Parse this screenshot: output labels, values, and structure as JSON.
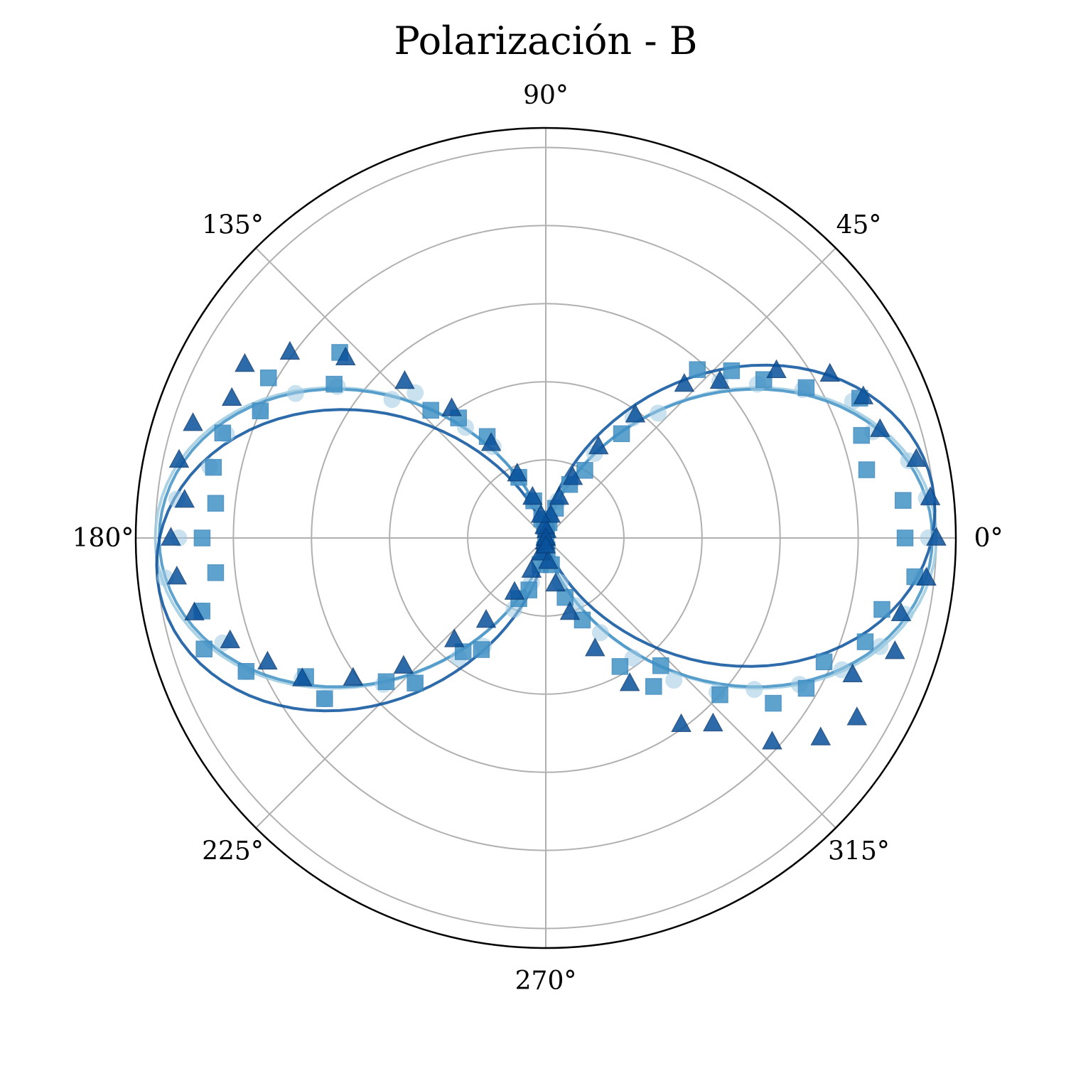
{
  "chart_data": {
    "type": "polar-scatter",
    "title": "Polarización - B",
    "theta_ticks": [
      {
        "angle": 0,
        "label": "0°"
      },
      {
        "angle": 45,
        "label": "45°"
      },
      {
        "angle": 90,
        "label": "90°"
      },
      {
        "angle": 135,
        "label": "135°"
      },
      {
        "angle": 180,
        "label": "180°"
      },
      {
        "angle": 225,
        "label": "225°"
      },
      {
        "angle": 270,
        "label": "270°"
      },
      {
        "angle": 315,
        "label": "315°"
      }
    ],
    "r_range": [
      0,
      1.05
    ],
    "r_gridlines": [
      0.2,
      0.4,
      0.6,
      0.8,
      1.0
    ],
    "grid": true,
    "colors": {
      "circles": "#9ecae1",
      "squares": "#4292c6",
      "triangles": "#08519c",
      "grid": "#b0b0b0"
    },
    "fits": [
      {
        "marker": "circle",
        "amplitude": 1.0,
        "phase_deg": 0,
        "color": "#9ecae1"
      },
      {
        "marker": "square",
        "amplitude": 0.99,
        "phase_deg": 0,
        "color": "#4292c6"
      },
      {
        "marker": "triangle",
        "amplitude": 1.0,
        "phase_deg": 6,
        "color": "#08519c"
      }
    ],
    "series": [
      {
        "marker": "circle",
        "color": "#9ecae1",
        "theta": [
          0,
          6,
          12,
          18,
          24,
          30,
          36,
          42,
          48,
          54,
          60,
          66,
          72,
          78,
          84,
          90,
          96,
          102,
          108,
          114,
          120,
          126,
          132,
          138,
          144,
          150,
          156,
          162,
          168,
          174,
          180,
          186,
          192,
          198,
          204,
          210,
          216,
          222,
          228,
          234,
          240,
          246,
          252,
          258,
          264,
          270,
          276,
          282,
          288,
          294,
          300,
          306,
          312,
          318,
          324,
          330,
          336,
          342,
          348,
          354
        ],
        "r": [
          0.98,
          0.98,
          0.95,
          0.88,
          0.86,
          0.76,
          0.67,
          0.6,
          0.43,
          0.38,
          0.25,
          0.15,
          0.1,
          0.05,
          0.01,
          0.0,
          0.02,
          0.05,
          0.1,
          0.17,
          0.27,
          0.35,
          0.5,
          0.53,
          0.66,
          0.74,
          0.8,
          0.86,
          0.88,
          0.95,
          0.94,
          0.98,
          0.9,
          0.87,
          0.84,
          0.72,
          0.7,
          0.56,
          0.5,
          0.38,
          0.32,
          0.2,
          0.12,
          0.06,
          0.02,
          0.01,
          0.02,
          0.06,
          0.12,
          0.19,
          0.28,
          0.38,
          0.49,
          0.59,
          0.66,
          0.75,
          0.83,
          0.9,
          0.94,
          0.97
        ]
      },
      {
        "marker": "square",
        "color": "#4292c6",
        "theta": [
          0,
          6,
          12,
          18,
          24,
          30,
          36,
          42,
          48,
          54,
          60,
          66,
          72,
          78,
          84,
          90,
          96,
          102,
          108,
          114,
          120,
          126,
          132,
          138,
          144,
          150,
          156,
          162,
          168,
          174,
          180,
          186,
          192,
          198,
          204,
          210,
          216,
          222,
          228,
          234,
          240,
          246,
          252,
          258,
          264,
          270,
          276,
          282,
          288,
          294,
          300,
          306,
          312,
          318,
          324,
          330,
          336,
          342,
          348,
          354
        ],
        "r": [
          0.92,
          0.92,
          0.84,
          0.85,
          0.88,
          0.77,
          0.69,
          0.64,
          0.58,
          0.33,
          0.2,
          0.15,
          0.08,
          0.04,
          0.02,
          0.01,
          0.03,
          0.05,
          0.1,
          0.17,
          0.3,
          0.38,
          0.44,
          0.71,
          0.67,
          0.82,
          0.8,
          0.87,
          0.87,
          0.85,
          0.88,
          0.85,
          0.9,
          0.92,
          0.84,
          0.71,
          0.7,
          0.55,
          0.5,
          0.36,
          0.33,
          0.17,
          0.14,
          0.07,
          0.03,
          0.01,
          0.03,
          0.07,
          0.16,
          0.23,
          0.38,
          0.47,
          0.44,
          0.6,
          0.72,
          0.77,
          0.78,
          0.86,
          0.88,
          0.95
        ]
      },
      {
        "marker": "triangle",
        "color": "#08519c",
        "theta": [
          0,
          6,
          12,
          18,
          24,
          30,
          36,
          42,
          48,
          54,
          60,
          66,
          72,
          78,
          84,
          90,
          96,
          102,
          108,
          114,
          120,
          126,
          132,
          138,
          144,
          150,
          156,
          162,
          168,
          174,
          180,
          186,
          192,
          198,
          204,
          210,
          216,
          222,
          228,
          234,
          240,
          246,
          252,
          258,
          264,
          270,
          276,
          282,
          288,
          294,
          300,
          306,
          312,
          318,
          324,
          330,
          336,
          342,
          348,
          354
        ],
        "r": [
          1.0,
          0.99,
          0.97,
          0.9,
          0.89,
          0.84,
          0.73,
          0.6,
          0.53,
          0.39,
          0.27,
          0.17,
          0.11,
          0.06,
          0.02,
          0.0,
          0.03,
          0.06,
          0.11,
          0.18,
          0.28,
          0.41,
          0.54,
          0.69,
          0.81,
          0.89,
          0.88,
          0.95,
          0.96,
          0.93,
          0.96,
          0.95,
          0.92,
          0.85,
          0.78,
          0.72,
          0.61,
          0.49,
          0.35,
          0.26,
          0.16,
          0.09,
          0.04,
          0.01,
          0.0,
          0.02,
          0.06,
          0.12,
          0.2,
          0.31,
          0.43,
          0.59,
          0.64,
          0.78,
          0.87,
          0.92,
          0.86,
          0.94,
          0.93,
          0.98
        ]
      }
    ]
  }
}
